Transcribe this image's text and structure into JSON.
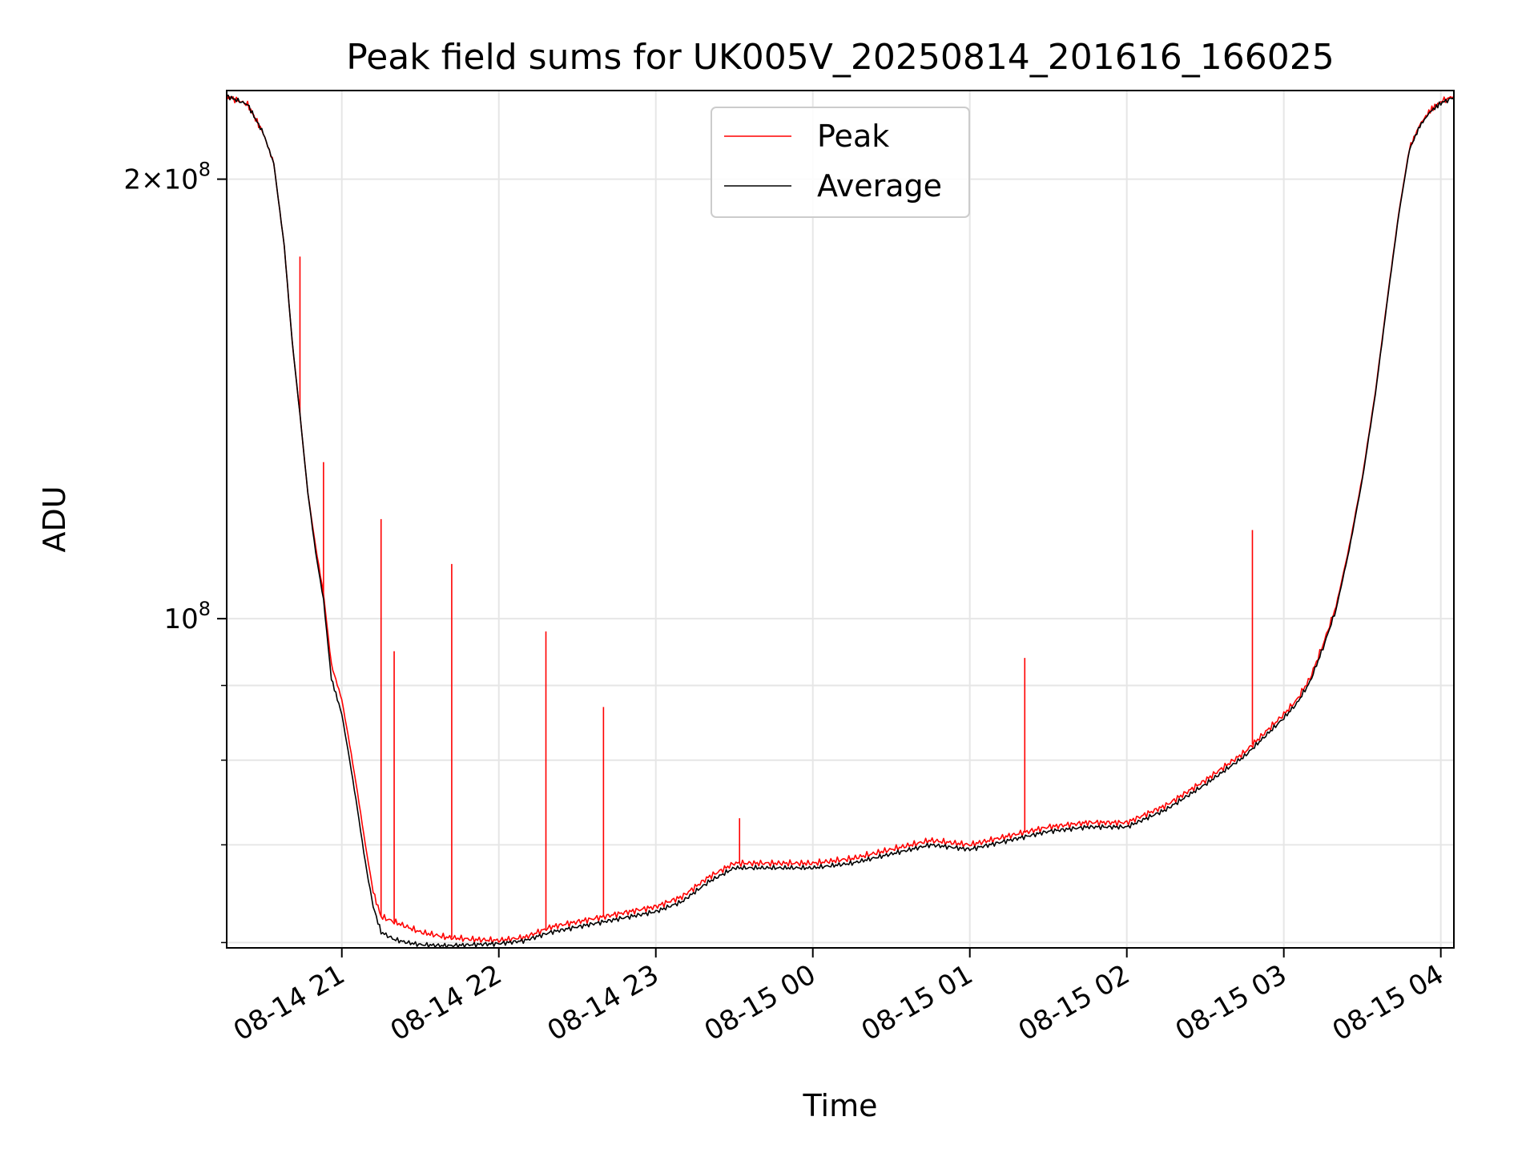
{
  "chart_data": {
    "type": "line",
    "title": "Peak field sums for UK005V_20250814_201616_166025",
    "xlabel": "Time",
    "ylabel": "ADU",
    "x_unit": "datetime",
    "xlim": [
      "2025-08-14 20:16",
      "2025-08-15 04:05"
    ],
    "ylim": [
      59500000,
      230000000
    ],
    "yscale": "log",
    "grid": true,
    "legend_position": "top-center",
    "x_ticks": [
      "08-14 21",
      "08-14 22",
      "08-14 23",
      "08-15 00",
      "08-15 01",
      "08-15 02",
      "08-15 03",
      "08-15 04"
    ],
    "x_tick_values": [
      "2025-08-14 21:00",
      "2025-08-14 22:00",
      "2025-08-14 23:00",
      "2025-08-15 00:00",
      "2025-08-15 01:00",
      "2025-08-15 02:00",
      "2025-08-15 03:00",
      "2025-08-15 04:00"
    ],
    "y_ticks_major": [
      {
        "value": 100000000,
        "label": "10",
        "exp": "8"
      },
      {
        "value": 200000000,
        "label": "2×10",
        "exp": "8"
      }
    ],
    "y_ticks_minor": [
      60000000,
      70000000,
      80000000,
      90000000
    ],
    "series": [
      {
        "name": "Peak",
        "color": "#ff0000",
        "x": [
          "2025-08-14 20:16",
          "2025-08-14 20:24",
          "2025-08-14 20:30",
          "2025-08-14 20:34",
          "2025-08-14 20:38",
          "2025-08-14 20:41",
          "2025-08-14 20:44",
          "2025-08-14 20:47",
          "2025-08-14 20:50",
          "2025-08-14 20:53",
          "2025-08-14 20:56",
          "2025-08-14 21:00",
          "2025-08-14 21:03",
          "2025-08-14 21:06",
          "2025-08-14 21:09",
          "2025-08-14 21:12",
          "2025-08-14 21:15",
          "2025-08-14 21:20",
          "2025-08-14 21:25",
          "2025-08-14 21:30",
          "2025-08-14 21:40",
          "2025-08-14 21:50",
          "2025-08-14 22:00",
          "2025-08-14 22:10",
          "2025-08-14 22:20",
          "2025-08-14 22:30",
          "2025-08-14 22:40",
          "2025-08-14 22:50",
          "2025-08-14 23:00",
          "2025-08-14 23:10",
          "2025-08-14 23:20",
          "2025-08-14 23:30",
          "2025-08-14 23:45",
          "2025-08-15 00:00",
          "2025-08-15 00:15",
          "2025-08-15 00:30",
          "2025-08-15 00:45",
          "2025-08-15 01:00",
          "2025-08-15 01:15",
          "2025-08-15 01:30",
          "2025-08-15 01:45",
          "2025-08-15 02:00",
          "2025-08-15 02:15",
          "2025-08-15 02:30",
          "2025-08-15 02:45",
          "2025-08-15 03:00",
          "2025-08-15 03:05",
          "2025-08-15 03:10",
          "2025-08-15 03:15",
          "2025-08-15 03:20",
          "2025-08-15 03:25",
          "2025-08-15 03:30",
          "2025-08-15 03:35",
          "2025-08-15 03:40",
          "2025-08-15 03:44",
          "2025-08-15 03:48",
          "2025-08-15 03:52",
          "2025-08-15 03:56",
          "2025-08-15 04:00",
          "2025-08-15 04:05"
        ],
        "y": [
          228000000,
          225000000,
          215000000,
          205000000,
          180000000,
          155000000,
          138000000,
          122000000,
          112000000,
          104000000,
          93000000,
          88000000,
          82000000,
          76000000,
          70000000,
          65000000,
          62500000,
          62000000,
          61500000,
          61000000,
          60500000,
          60300000,
          60200000,
          60500000,
          61500000,
          62000000,
          62500000,
          63000000,
          63500000,
          64500000,
          66500000,
          68000000,
          68000000,
          68000000,
          68500000,
          69500000,
          70500000,
          70000000,
          71000000,
          72000000,
          72500000,
          72500000,
          74500000,
          77500000,
          81000000,
          86000000,
          88000000,
          91000000,
          96000000,
          102000000,
          112000000,
          125000000,
          143000000,
          168000000,
          190000000,
          210000000,
          218000000,
          223000000,
          226000000,
          228000000
        ],
        "spikes": [
          {
            "x": "2025-08-14 20:44",
            "y": 177000000
          },
          {
            "x": "2025-08-14 20:53",
            "y": 128000000
          },
          {
            "x": "2025-08-14 21:15",
            "y": 117000000
          },
          {
            "x": "2025-08-14 21:20",
            "y": 95000000
          },
          {
            "x": "2025-08-14 21:42",
            "y": 109000000
          },
          {
            "x": "2025-08-14 22:18",
            "y": 98000000
          },
          {
            "x": "2025-08-14 22:40",
            "y": 87000000
          },
          {
            "x": "2025-08-14 23:32",
            "y": 73000000
          },
          {
            "x": "2025-08-15 01:21",
            "y": 94000000
          },
          {
            "x": "2025-08-15 02:48",
            "y": 115000000
          }
        ]
      },
      {
        "name": "Average",
        "color": "#000000",
        "x": [
          "2025-08-14 20:16",
          "2025-08-14 20:24",
          "2025-08-14 20:30",
          "2025-08-14 20:34",
          "2025-08-14 20:38",
          "2025-08-14 20:41",
          "2025-08-14 20:44",
          "2025-08-14 20:47",
          "2025-08-14 20:50",
          "2025-08-14 20:53",
          "2025-08-14 20:56",
          "2025-08-14 21:00",
          "2025-08-14 21:03",
          "2025-08-14 21:06",
          "2025-08-14 21:09",
          "2025-08-14 21:12",
          "2025-08-14 21:15",
          "2025-08-14 21:20",
          "2025-08-14 21:25",
          "2025-08-14 21:30",
          "2025-08-14 21:40",
          "2025-08-14 21:50",
          "2025-08-14 22:00",
          "2025-08-14 22:10",
          "2025-08-14 22:20",
          "2025-08-14 22:30",
          "2025-08-14 22:40",
          "2025-08-14 22:50",
          "2025-08-14 23:00",
          "2025-08-14 23:10",
          "2025-08-14 23:20",
          "2025-08-14 23:30",
          "2025-08-14 23:45",
          "2025-08-15 00:00",
          "2025-08-15 00:15",
          "2025-08-15 00:30",
          "2025-08-15 00:45",
          "2025-08-15 01:00",
          "2025-08-15 01:15",
          "2025-08-15 01:30",
          "2025-08-15 01:45",
          "2025-08-15 02:00",
          "2025-08-15 02:15",
          "2025-08-15 02:30",
          "2025-08-15 02:45",
          "2025-08-15 03:00",
          "2025-08-15 03:05",
          "2025-08-15 03:10",
          "2025-08-15 03:15",
          "2025-08-15 03:20",
          "2025-08-15 03:25",
          "2025-08-15 03:30",
          "2025-08-15 03:35",
          "2025-08-15 03:40",
          "2025-08-15 03:44",
          "2025-08-15 03:48",
          "2025-08-15 03:52",
          "2025-08-15 03:56",
          "2025-08-15 04:00",
          "2025-08-15 04:05"
        ],
        "y": [
          228000000,
          225000000,
          215000000,
          205000000,
          180000000,
          155000000,
          138000000,
          122000000,
          111000000,
          103000000,
          91000000,
          86000000,
          80000000,
          74000000,
          68000000,
          63500000,
          61000000,
          60300000,
          60000000,
          59800000,
          59700000,
          59800000,
          59900000,
          60200000,
          61000000,
          61500000,
          62000000,
          62500000,
          63000000,
          64000000,
          66000000,
          67500000,
          67500000,
          67500000,
          68000000,
          69000000,
          70000000,
          69500000,
          70500000,
          71500000,
          72000000,
          72000000,
          74000000,
          77000000,
          80500000,
          85500000,
          87500000,
          90500000,
          95500000,
          101500000,
          111500000,
          124500000,
          142500000,
          167500000,
          189500000,
          209500000,
          217500000,
          222500000,
          225500000,
          227500000
        ]
      }
    ]
  }
}
